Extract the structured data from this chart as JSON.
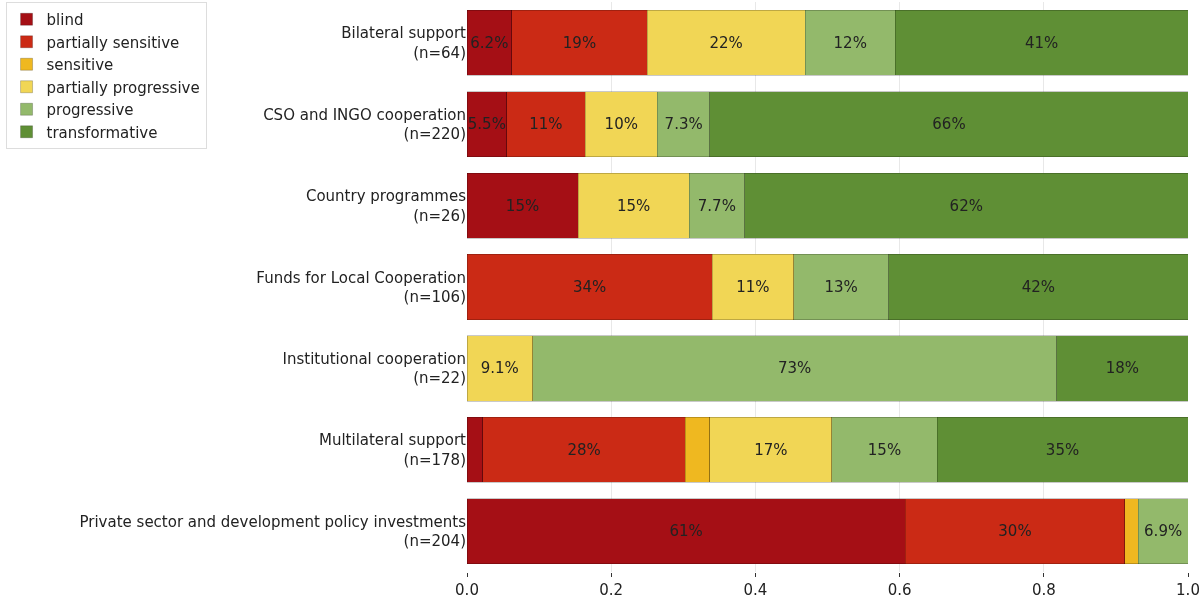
{
  "chart_data": {
    "type": "bar",
    "orientation": "horizontal",
    "stacked": true,
    "categories": [
      "Bilateral support\n(n=64)",
      "CSO and INGO cooperation\n(n=220)",
      "Country programmes\n(n=26)",
      "Funds for Local Cooperation\n(n=106)",
      "Institutional cooperation\n(n=22)",
      "Multilateral support\n(n=178)",
      "Private sector and development policy investments\n(n=204)"
    ],
    "series": [
      {
        "name": "blind",
        "color": "#a50f15",
        "values": [
          0.062,
          0.055,
          0.154,
          null,
          null,
          0.022,
          0.608
        ],
        "value_labels": [
          "6.2%",
          "5.5%",
          "15%",
          null,
          null,
          null,
          "61%"
        ]
      },
      {
        "name": "partially sensitive",
        "color": "#cb2a15",
        "values": [
          0.188,
          0.109,
          null,
          0.34,
          null,
          0.281,
          0.304
        ],
        "value_labels": [
          "19%",
          "11%",
          null,
          "34%",
          null,
          "28%",
          "30%"
        ]
      },
      {
        "name": "sensitive",
        "color": "#efb820",
        "values": [
          null,
          null,
          null,
          null,
          null,
          0.034,
          0.019
        ],
        "value_labels": [
          null,
          null,
          null,
          null,
          null,
          null,
          null
        ]
      },
      {
        "name": "partially progressive",
        "color": "#f1d655",
        "values": [
          0.219,
          0.1,
          0.154,
          0.113,
          0.091,
          0.169,
          null
        ],
        "value_labels": [
          "22%",
          "10%",
          "15%",
          "11%",
          "9.1%",
          "17%",
          null
        ]
      },
      {
        "name": "progressive",
        "color": "#93b96b",
        "values": [
          0.125,
          0.073,
          0.077,
          0.132,
          0.727,
          0.146,
          0.069
        ],
        "value_labels": [
          "12%",
          "7.3%",
          "7.7%",
          "13%",
          "73%",
          "15%",
          "6.9%"
        ]
      },
      {
        "name": "transformative",
        "color": "#5f8f35",
        "values": [
          0.406,
          0.663,
          0.615,
          0.415,
          0.182,
          0.348,
          null
        ],
        "value_labels": [
          "41%",
          "66%",
          "62%",
          "42%",
          "18%",
          "35%",
          null
        ]
      }
    ],
    "xlim": [
      0.0,
      1.0
    ],
    "xticks": [
      "0.0",
      "0.2",
      "0.4",
      "0.6",
      "0.8",
      "1.0"
    ],
    "grid": "x",
    "legend": "top left"
  }
}
